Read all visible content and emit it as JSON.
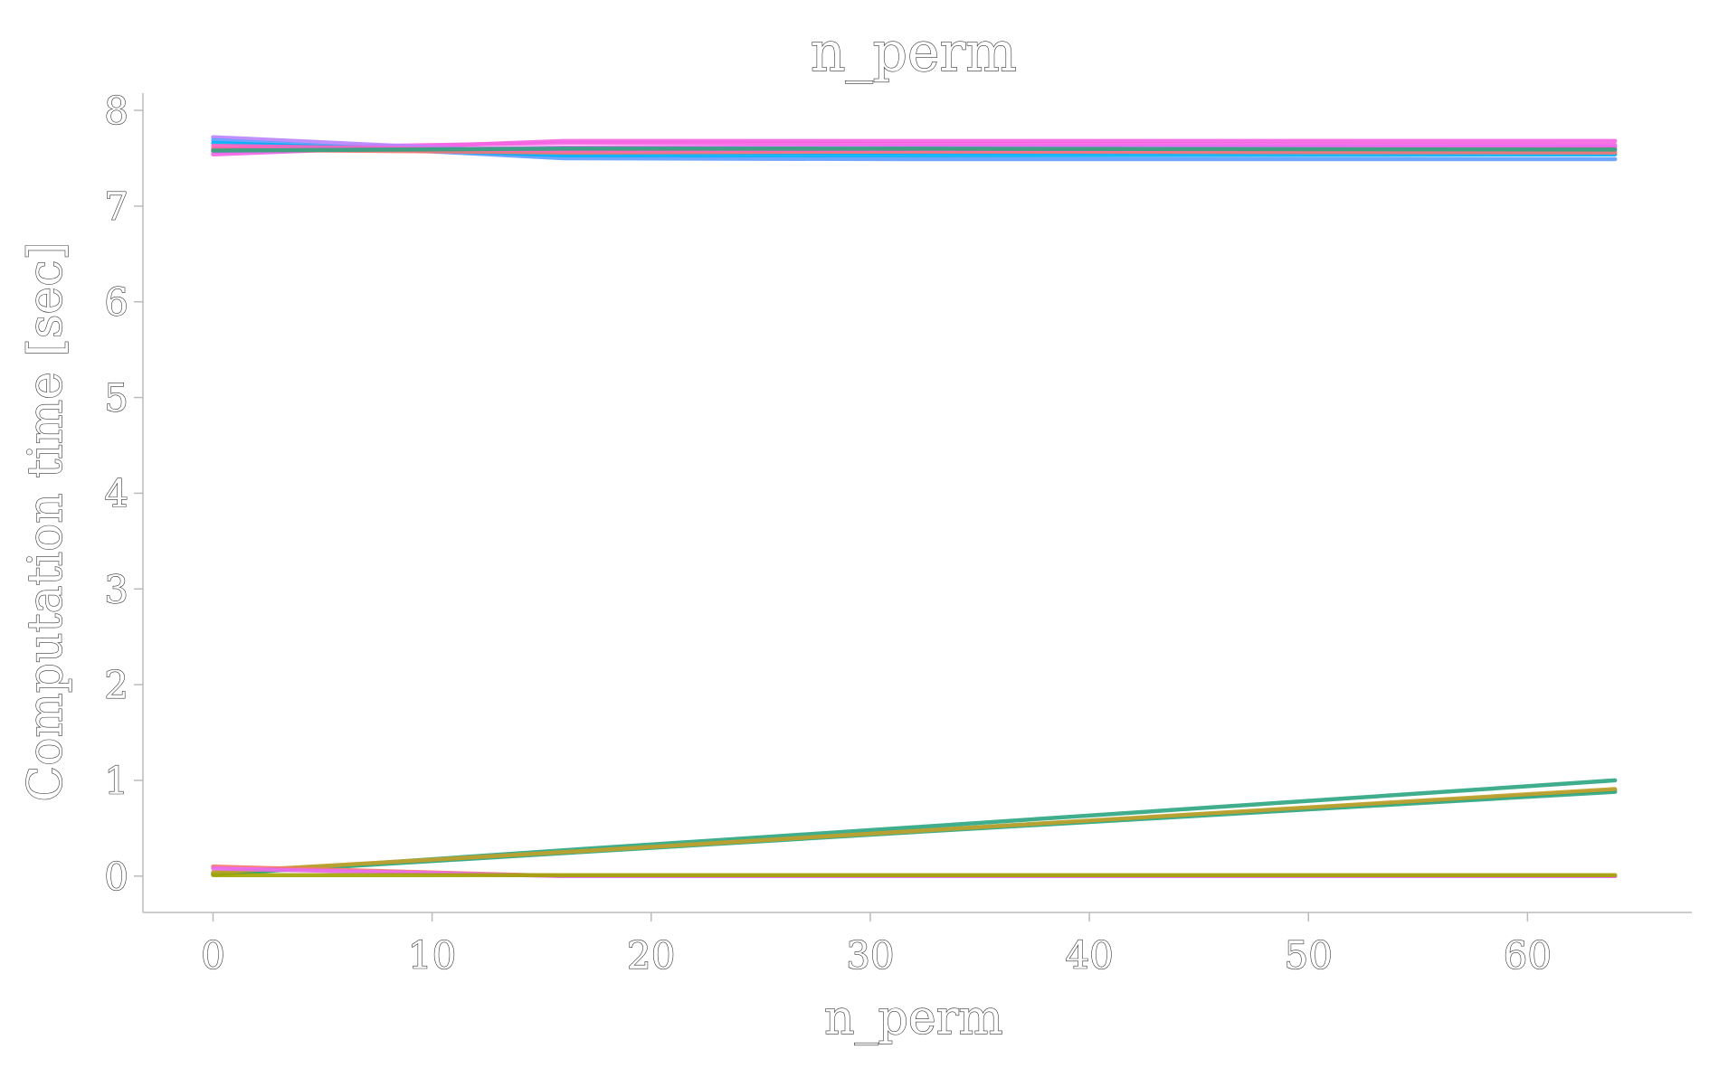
{
  "chart_data": {
    "type": "line",
    "title": "n_perm",
    "xlabel": "n_perm",
    "ylabel": "Computation time [sec]",
    "xlim": [
      -3.2,
      67.5
    ],
    "ylim": [
      -0.38,
      8.18
    ],
    "xticks": [
      0,
      10,
      20,
      30,
      40,
      50,
      60
    ],
    "yticks": [
      0,
      1,
      2,
      3,
      4,
      5,
      6,
      7,
      8
    ],
    "x": [
      0,
      16,
      32,
      64
    ],
    "grid": false,
    "legend": "none",
    "series": [
      {
        "color": "#f564e3",
        "values": [
          7.54,
          7.68,
          7.68,
          7.68
        ]
      },
      {
        "color": "#f564e3",
        "values": [
          7.6,
          7.66,
          7.65,
          7.64
        ]
      },
      {
        "color": "#e76bf3",
        "values": [
          7.57,
          7.61,
          7.62,
          7.62
        ]
      },
      {
        "color": "#b983ff",
        "values": [
          7.72,
          7.55,
          7.56,
          7.57
        ]
      },
      {
        "color": "#619cff",
        "values": [
          7.69,
          7.5,
          7.49,
          7.49
        ]
      },
      {
        "color": "#00b0f6",
        "values": [
          7.66,
          7.53,
          7.53,
          7.54
        ]
      },
      {
        "color": "#f8766d",
        "values": [
          7.59,
          7.56,
          7.57,
          7.56
        ]
      },
      {
        "color": "#ff62bc",
        "values": [
          7.63,
          7.58,
          7.59,
          7.6
        ]
      },
      {
        "color": "#2ba580",
        "values": [
          7.58,
          7.6,
          7.6,
          7.59
        ]
      },
      {
        "color": "#2ba580",
        "values": [
          0.02,
          0.27,
          0.51,
          1.0
        ]
      },
      {
        "color": "#2ba580",
        "values": [
          0.03,
          0.25,
          0.47,
          0.9
        ]
      },
      {
        "color": "#2ba580",
        "values": [
          0.02,
          0.24,
          0.46,
          0.88
        ]
      },
      {
        "color": "#c7a12a",
        "values": [
          0.04,
          0.25,
          0.47,
          0.91
        ]
      },
      {
        "color": "#f8766d",
        "values": [
          0.1,
          0.0,
          0.0,
          0.0
        ]
      },
      {
        "color": "#e76bf3",
        "values": [
          0.08,
          0.0,
          0.0,
          0.0
        ]
      },
      {
        "color": "#a3a500",
        "values": [
          0.01,
          0.01,
          0.01,
          0.01
        ]
      }
    ]
  }
}
